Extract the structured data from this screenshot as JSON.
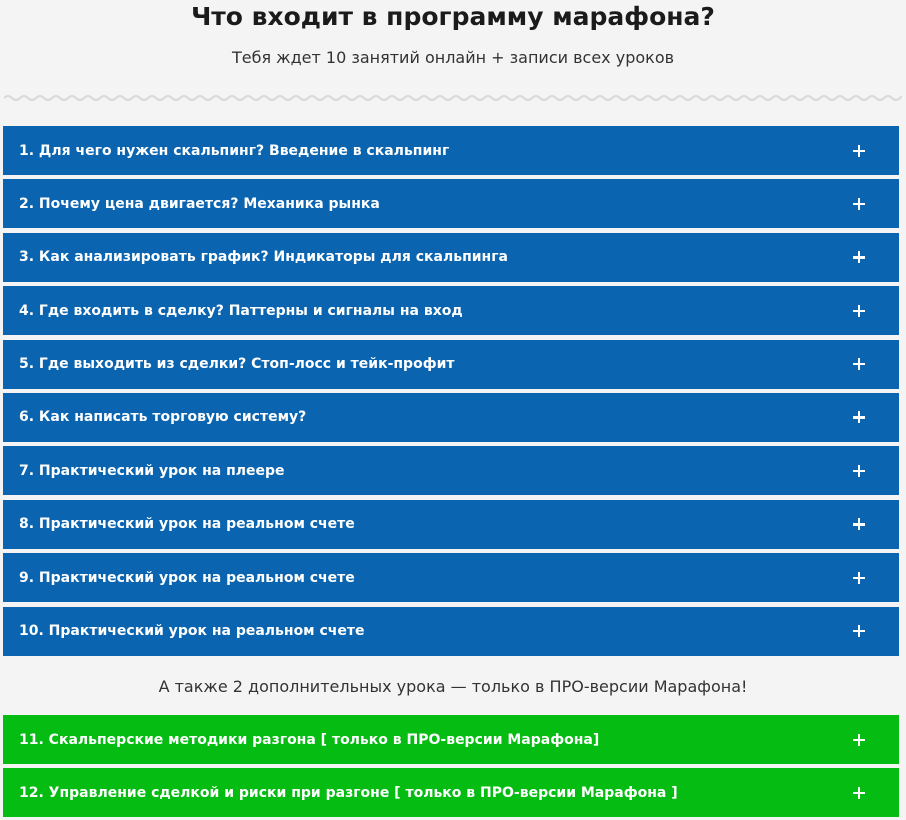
{
  "header": {
    "title": "Что входит в программу марафона?",
    "subtitle": "Тебя ждет 10 занятий онлайн + записи всех уроков"
  },
  "lessons": [
    {
      "label": "1. Для чего нужен скальпинг? Введение в скальпинг"
    },
    {
      "label": "2. Почему цена двигается? Механика рынка"
    },
    {
      "label": "3. Как анализировать график? Индикаторы для скальпинга"
    },
    {
      "label": "4. Где входить в сделку? Паттерны и сигналы на вход"
    },
    {
      "label": "5. Где выходить из сделки? Стоп-лосс и тейк-профит"
    },
    {
      "label": "6. Как написать торговую систему?"
    },
    {
      "label": "7. Практический урок на плеере"
    },
    {
      "label": "8. Практический урок на реальном счете"
    },
    {
      "label": "9. Практический урок на реальном счете"
    },
    {
      "label": "10. Практический урок на реальном счете"
    }
  ],
  "extra_note": "А также 2 дополнительных урока — только в ПРО-версии Марафона!",
  "pro_lessons": [
    {
      "label": "11. Скальперские методики разгона [ только в ПРО-версии Марафона]"
    },
    {
      "label": "12. Управление сделкой и риски при разгоне [ только в ПРО-версии Марафона ]"
    }
  ],
  "colors": {
    "lesson_bg": "#0a64b0",
    "pro_lesson_bg": "#05bd12",
    "page_bg": "#f4f4f4"
  },
  "icons": {
    "accordion_toggle": "plus-icon",
    "divider": "wavy-divider"
  }
}
